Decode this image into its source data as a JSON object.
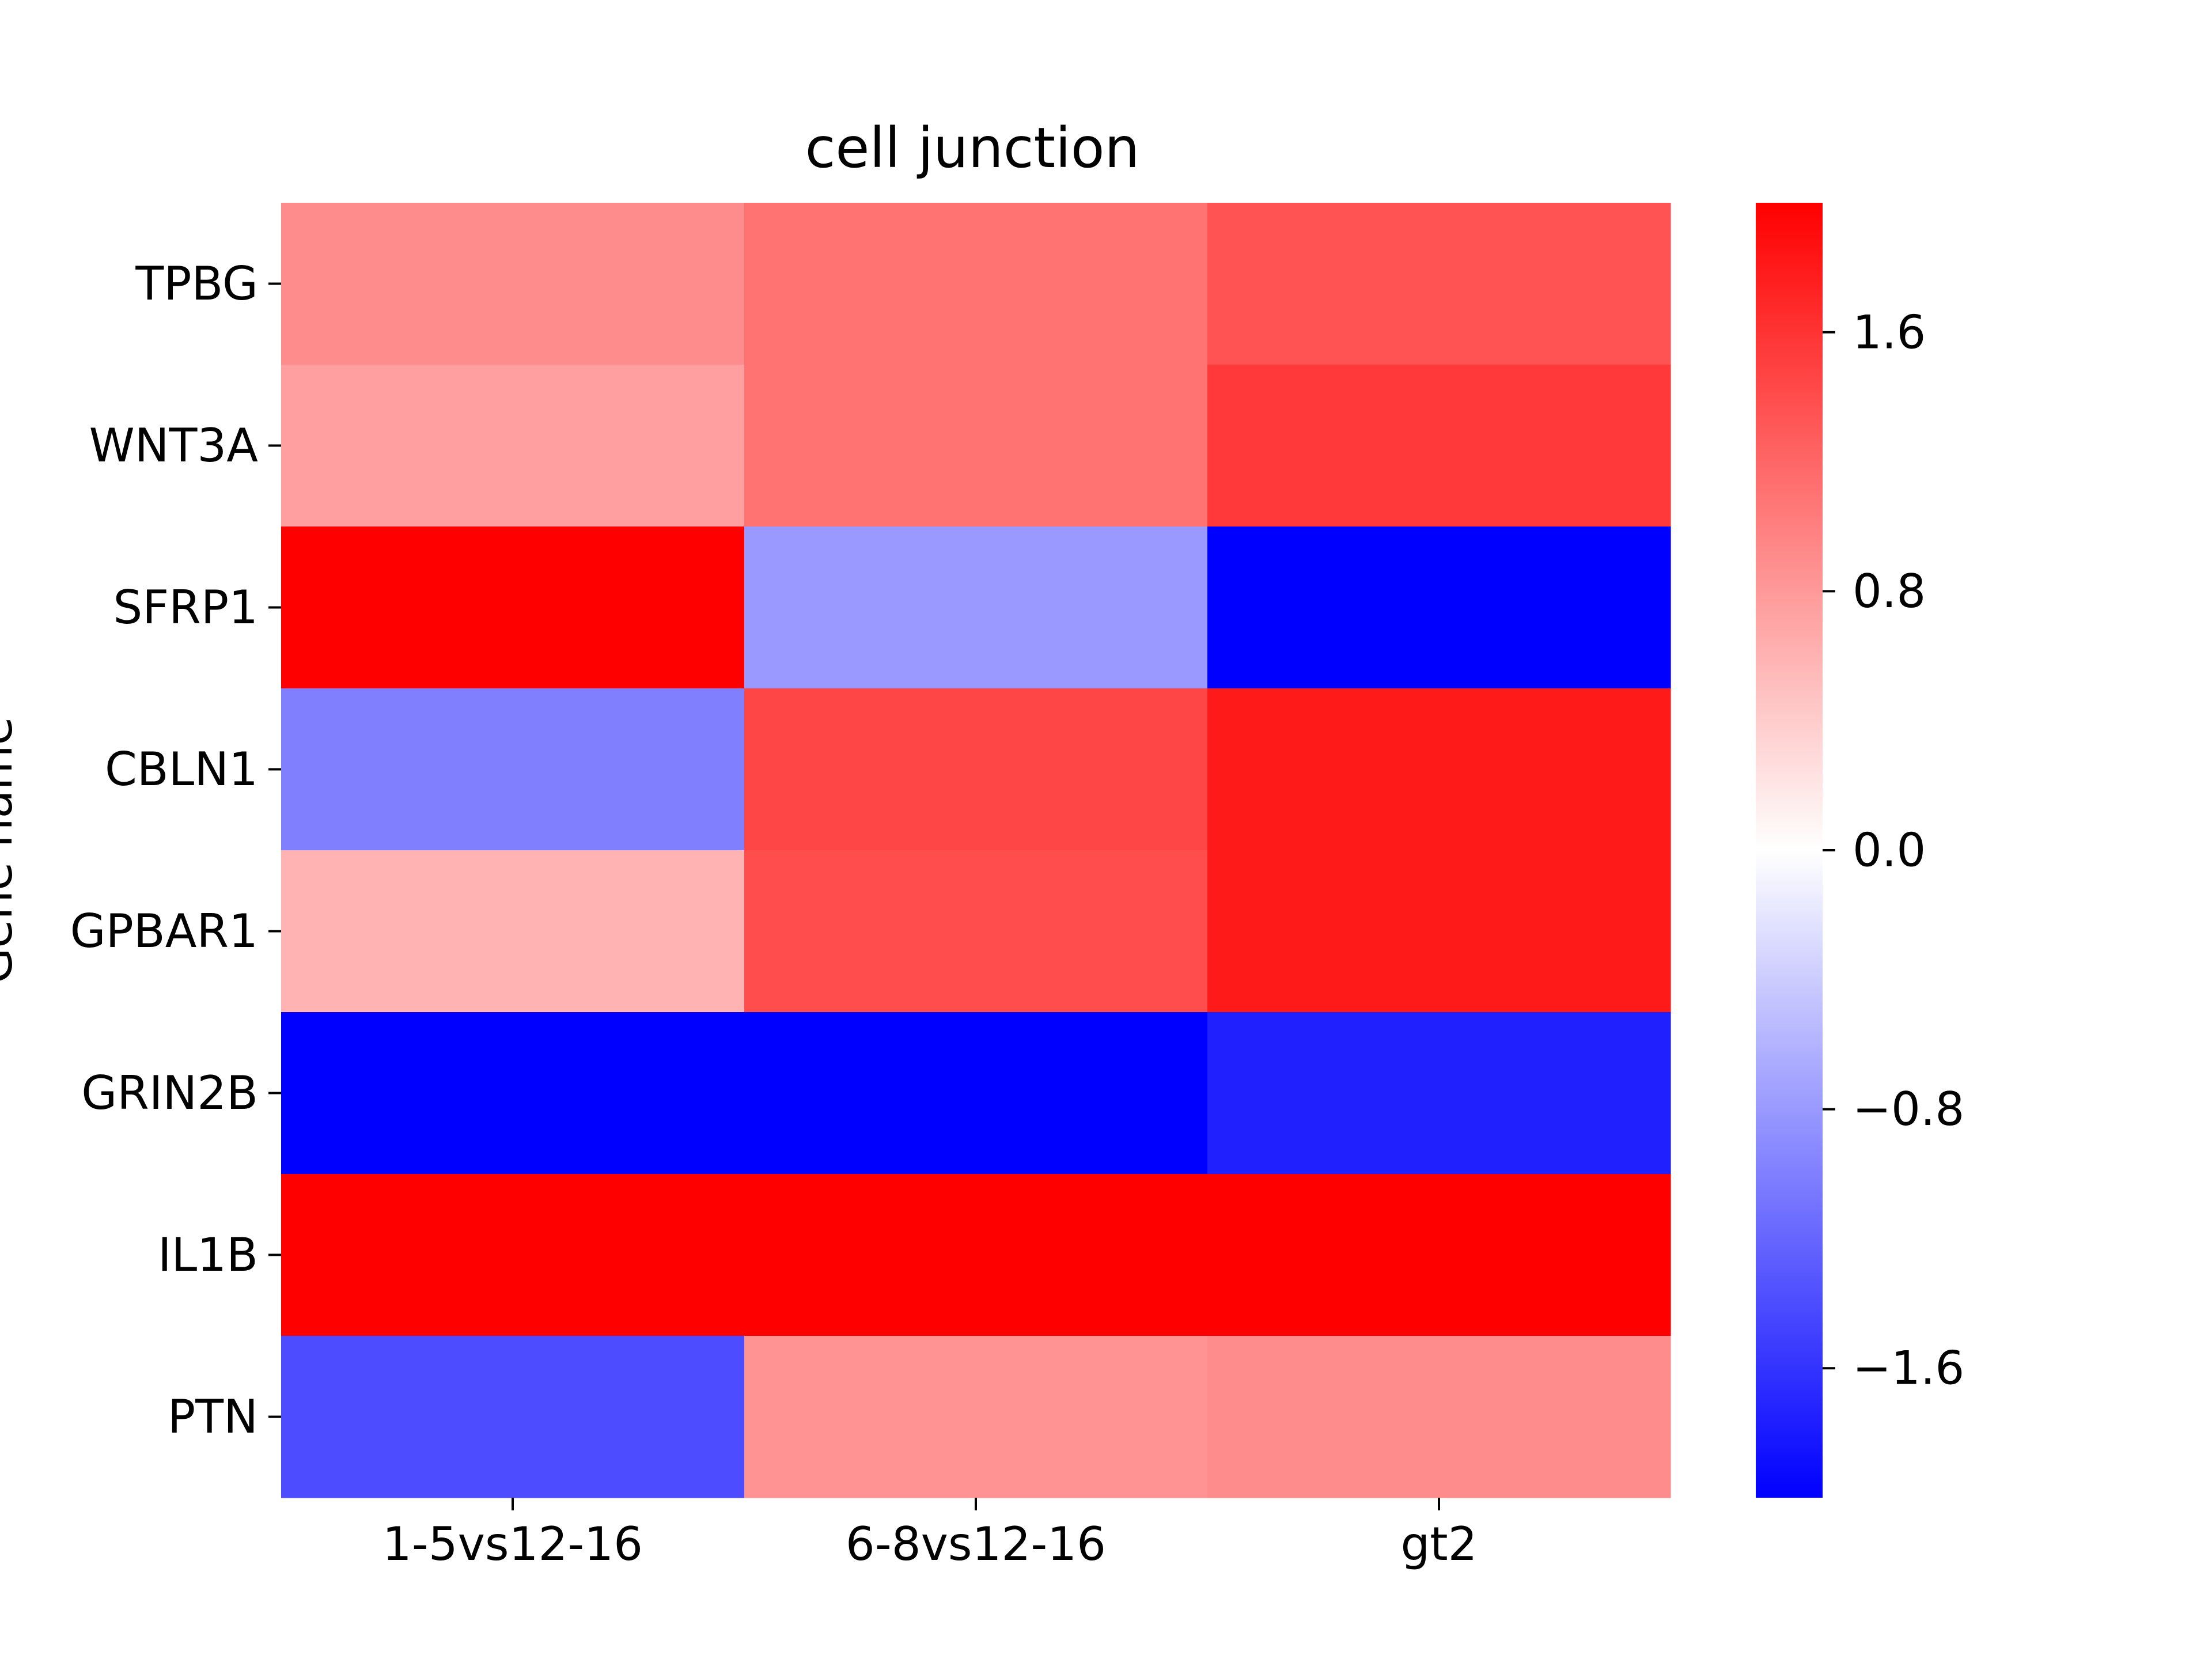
{
  "chart_data": {
    "type": "heatmap",
    "title": "cell junction",
    "xlabel": "",
    "ylabel": "Gene name",
    "x_categories": [
      "1-5vs12-16",
      "6-8vs12-16",
      "gt2"
    ],
    "y_categories": [
      "TPBG",
      "WNT3A",
      "SFRP1",
      "CBLN1",
      "GPBAR1",
      "GRIN2B",
      "IL1B",
      "PTN"
    ],
    "values": [
      [
        0.9,
        1.1,
        1.35
      ],
      [
        0.75,
        1.1,
        1.55
      ],
      [
        2.0,
        -0.8,
        -2.0
      ],
      [
        -1.0,
        1.45,
        1.8
      ],
      [
        0.6,
        1.4,
        1.8
      ],
      [
        -2.0,
        -2.0,
        -1.75
      ],
      [
        2.0,
        2.0,
        2.0
      ],
      [
        -1.4,
        0.85,
        0.9
      ]
    ],
    "colorbar": {
      "vmin": -2.0,
      "vmax": 2.0,
      "ticks": [
        -1.6,
        -0.8,
        0.0,
        0.8,
        1.6
      ],
      "tick_labels": [
        "−1.6",
        "−0.8",
        "0.0",
        "0.8",
        "1.6"
      ],
      "colors": [
        "#0000ff",
        "#ffffff",
        "#ff0000"
      ]
    }
  }
}
